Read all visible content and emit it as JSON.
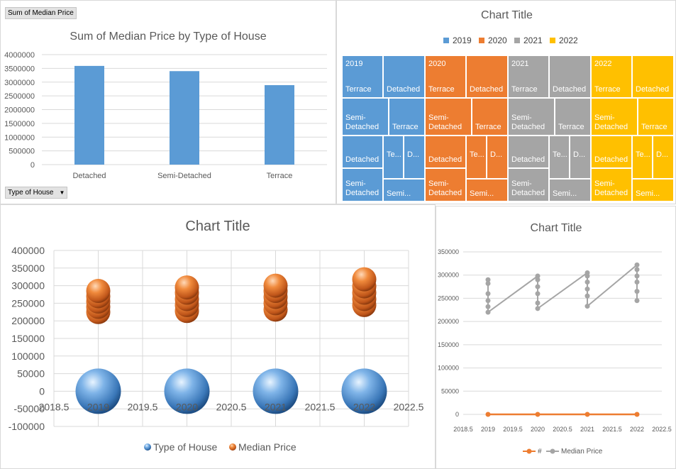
{
  "colors": {
    "c2019": "#5b9bd5",
    "c2020": "#ed7d31",
    "c2021": "#a5a5a5",
    "c2022": "#ffc000",
    "bar": "#5b9bd5",
    "grid": "#d9d9d9",
    "axis_text": "#595959"
  },
  "chart_data": [
    {
      "type": "bar",
      "pivot_value_button": "Sum of Median Price",
      "pivot_axis_button": "Type of House",
      "title": "Sum of Median Price by Type of House",
      "categories": [
        "Detached",
        "Semi-Detached",
        "Terrace"
      ],
      "values": [
        3590000,
        3400000,
        2890000
      ],
      "ylim": [
        0,
        4000000
      ],
      "yticks": [
        "4000000",
        "3500000",
        "3000000",
        "2500000",
        "2000000",
        "1500000",
        "1000000",
        "500000",
        "0"
      ]
    },
    {
      "type": "treemap",
      "title": "Chart Title",
      "legend": [
        "2019",
        "2020",
        "2021",
        "2022"
      ],
      "groups": [
        {
          "year": "2019",
          "cells": [
            "Terrace",
            "Detached",
            "Semi-\nDetached",
            "Terrace",
            "Detached",
            "Te...",
            "D...",
            "Semi-\nDetached",
            "Semi..."
          ]
        },
        {
          "year": "2020",
          "cells": [
            "Terrace",
            "Detached",
            "Semi-\nDetached",
            "Terrace",
            "Detached",
            "Te...",
            "D...",
            "Semi-\nDetached",
            "Semi..."
          ]
        },
        {
          "year": "2021",
          "cells": [
            "Terrace",
            "Detached",
            "Semi-\nDetached",
            "Terrace",
            "Detached",
            "Te...",
            "D...",
            "Semi-\nDetached",
            "Semi..."
          ]
        },
        {
          "year": "2022",
          "cells": [
            "Terrace",
            "Detached",
            "Semi-\nDetached",
            "Terrace",
            "Detached",
            "Te...",
            "D...",
            "Semi-\nDetached",
            "Semi..."
          ]
        }
      ]
    },
    {
      "type": "bubble",
      "title": "Chart Title",
      "xlim": [
        2018.5,
        2022.5
      ],
      "xticks": [
        "2018.5",
        "2019",
        "2019.5",
        "2020",
        "2020.5",
        "2021",
        "2021.5",
        "2022",
        "2022.5"
      ],
      "ylim": [
        -100000,
        400000
      ],
      "yticks": [
        "400000",
        "350000",
        "300000",
        "250000",
        "200000",
        "150000",
        "100000",
        "50000",
        "0",
        "-50000",
        "-100000"
      ],
      "series": [
        {
          "name": "Type of House",
          "x": [
            2019,
            2020,
            2021,
            2022
          ],
          "y": [
            0,
            0,
            0,
            0
          ]
        },
        {
          "name": "Median Price",
          "x": [
            2019,
            2019,
            2019,
            2019,
            2019,
            2020,
            2020,
            2020,
            2020,
            2020,
            2021,
            2021,
            2021,
            2021,
            2021,
            2022,
            2022,
            2022,
            2022,
            2022
          ],
          "y": [
            225000,
            240000,
            255000,
            270000,
            285000,
            228000,
            245000,
            262000,
            280000,
            295000,
            232000,
            250000,
            268000,
            285000,
            300000,
            245000,
            262000,
            280000,
            298000,
            318000
          ]
        }
      ]
    },
    {
      "type": "line",
      "title": "Chart Title",
      "xlim": [
        2018.5,
        2022.5
      ],
      "xticks": [
        "2018.5",
        "2019",
        "2019.5",
        "2020",
        "2020.5",
        "2021",
        "2021.5",
        "2022",
        "2022.5"
      ],
      "ylim": [
        0,
        350000
      ],
      "yticks": [
        "350000",
        "300000",
        "250000",
        "200000",
        "150000",
        "100000",
        "50000",
        "0"
      ],
      "series": [
        {
          "name": "#",
          "x": [
            2019,
            2020,
            2021,
            2022
          ],
          "y": [
            0,
            0,
            0,
            0
          ]
        },
        {
          "name": "Median Price",
          "x": [
            2019,
            2019,
            2019,
            2019,
            2019,
            2019,
            2020,
            2020,
            2020,
            2020,
            2020,
            2020,
            2021,
            2021,
            2021,
            2021,
            2021,
            2021,
            2022,
            2022,
            2022,
            2022,
            2022,
            2022
          ],
          "y": [
            290000,
            282000,
            260000,
            245000,
            232000,
            220000,
            298000,
            290000,
            275000,
            260000,
            240000,
            228000,
            305000,
            298000,
            285000,
            270000,
            255000,
            233000,
            322000,
            312000,
            298000,
            285000,
            265000,
            245000
          ]
        }
      ]
    }
  ]
}
